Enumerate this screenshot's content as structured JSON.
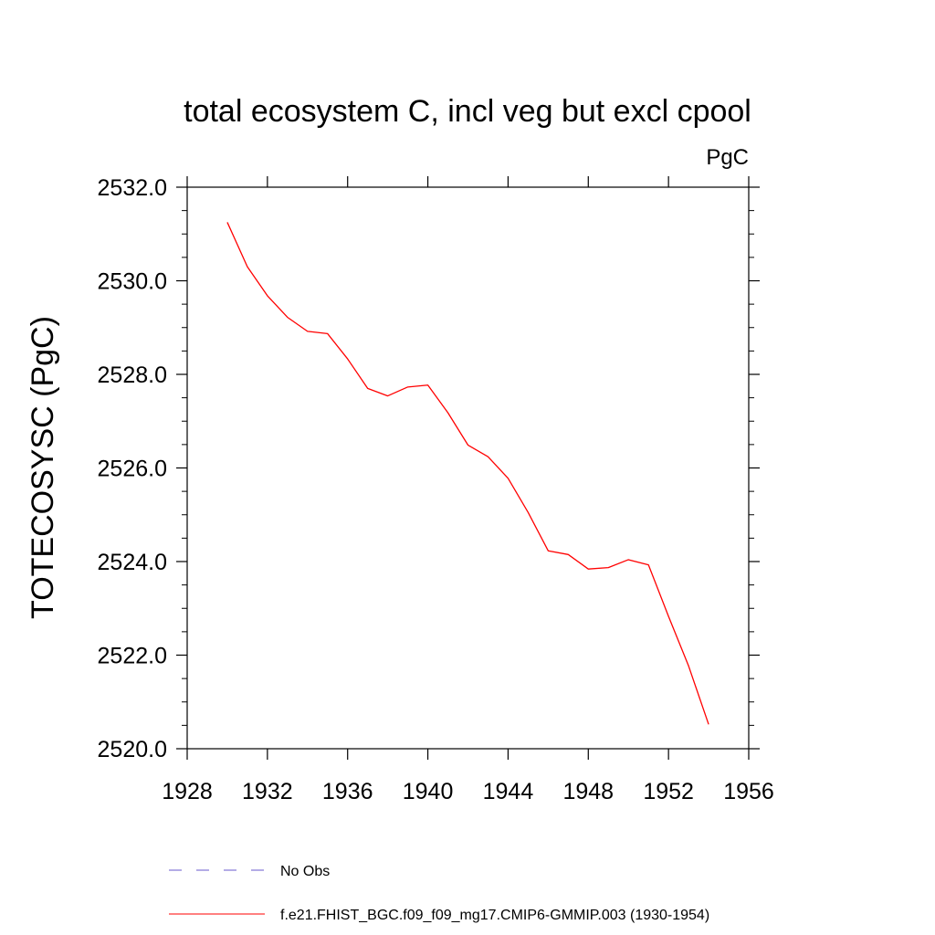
{
  "chart_data": {
    "type": "line",
    "title": "total ecosystem C, incl veg but excl cpool",
    "units": "PgC",
    "xlabel": "",
    "ylabel": "TOTECOSYSC  (PgC)",
    "xlim": [
      1928,
      1956
    ],
    "ylim": [
      2520.0,
      2532.0
    ],
    "x_ticks": [
      "1928",
      "1932",
      "1936",
      "1940",
      "1944",
      "1948",
      "1952",
      "1956"
    ],
    "y_ticks": [
      "2520.0",
      "2522.0",
      "2524.0",
      "2526.0",
      "2528.0",
      "2530.0",
      "2532.0"
    ],
    "grid": false,
    "series": [
      {
        "name": "f.e21.FHIST_BGC.f09_f09_mg17.CMIP6-GMMIP.003 (1930-1954)",
        "color": "#ff0000",
        "x": [
          1930,
          1931,
          1932,
          1933,
          1934,
          1935,
          1936,
          1937,
          1938,
          1939,
          1940,
          1941,
          1942,
          1943,
          1944,
          1945,
          1946,
          1947,
          1948,
          1949,
          1950,
          1951,
          1952,
          1953,
          1954
        ],
        "y": [
          2531.25,
          2530.3,
          2529.68,
          2529.22,
          2528.92,
          2528.87,
          2528.33,
          2527.7,
          2527.54,
          2527.73,
          2527.77,
          2527.18,
          2526.49,
          2526.24,
          2525.78,
          2525.05,
          2524.23,
          2524.15,
          2523.84,
          2523.87,
          2524.04,
          2523.93,
          2522.83,
          2521.77,
          2520.52
        ]
      }
    ],
    "legend": {
      "placement": "bottom",
      "entries": [
        {
          "label": "No Obs",
          "style": "dashed",
          "color": "#6a5acd"
        },
        {
          "label": "f.e21.FHIST_BGC.f09_f09_mg17.CMIP6-GMMIP.003 (1930-1954)",
          "style": "solid",
          "color": "#ff0000"
        }
      ]
    }
  }
}
